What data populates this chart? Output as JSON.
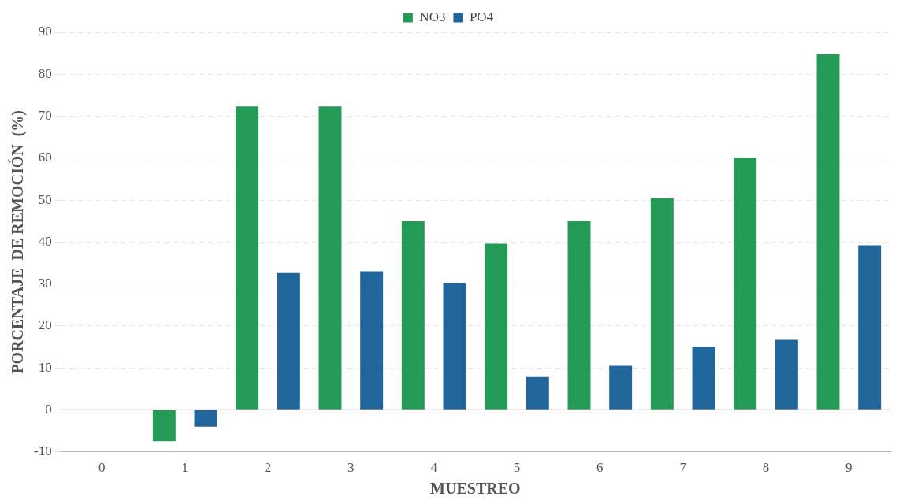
{
  "chart_data": {
    "type": "bar",
    "xlabel": "MUESTREO",
    "ylabel": "PORCENTAJE  DE REMOCIÓN  (%)",
    "categories": [
      "0",
      "1",
      "2",
      "3",
      "4",
      "5",
      "6",
      "7",
      "8",
      "9"
    ],
    "series": [
      {
        "name": "NO3",
        "color": "#239b56",
        "values": [
          0,
          -7.5,
          72.3,
          72.3,
          45,
          39.6,
          45,
          50.4,
          60.1,
          84.8
        ]
      },
      {
        "name": "PO4",
        "color": "#21669a",
        "values": [
          0,
          -4,
          32.6,
          33,
          30.3,
          7.8,
          10.5,
          15.1,
          16.7,
          39.2
        ]
      }
    ],
    "ylim": [
      -10,
      90
    ],
    "yticks": [
      -10,
      0,
      10,
      20,
      30,
      40,
      50,
      60,
      70,
      80,
      90
    ],
    "grid": "y",
    "legend": "top",
    "ref_lines": [
      {
        "axis": "y",
        "value": 0,
        "color": "#999999"
      }
    ]
  }
}
